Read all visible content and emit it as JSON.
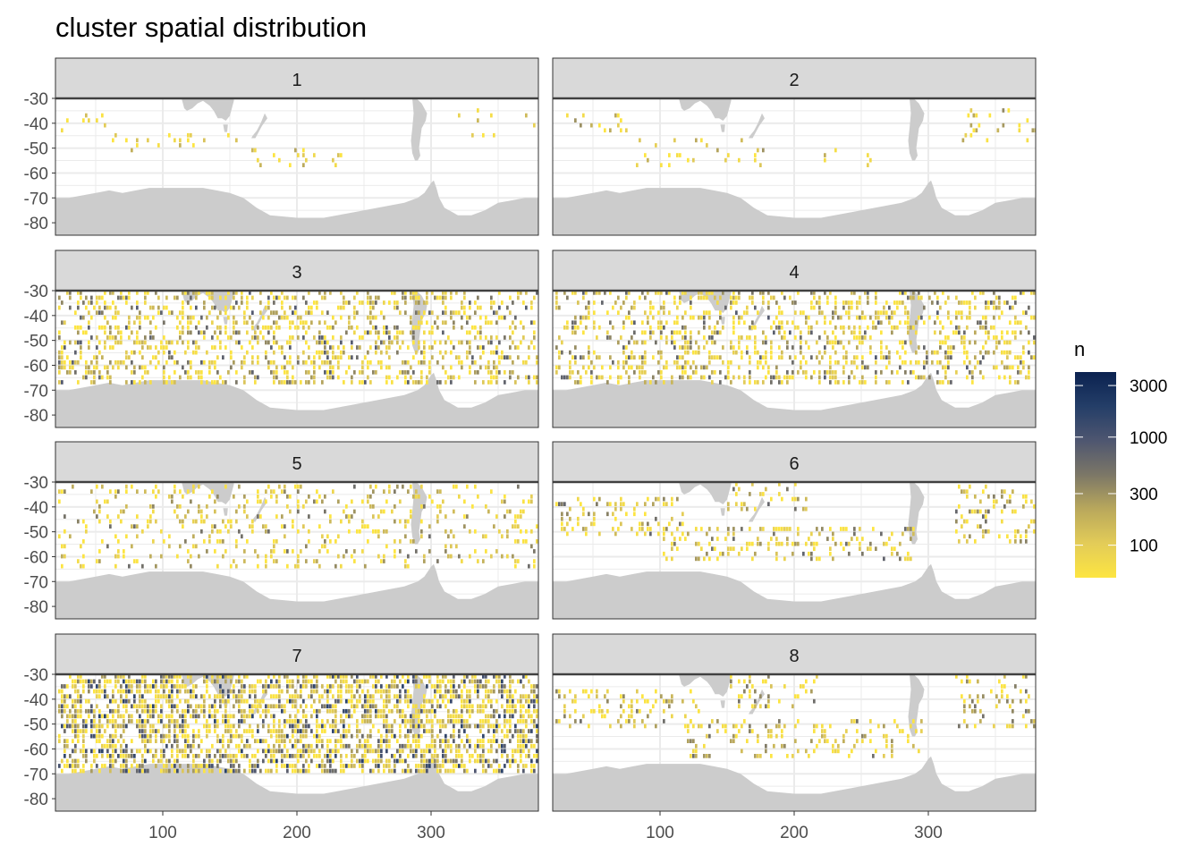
{
  "chart_data": {
    "type": "heatmap",
    "title": "cluster spatial distribution",
    "xlabel": "",
    "ylabel": "",
    "facets": [
      "1",
      "2",
      "3",
      "4",
      "5",
      "6",
      "7",
      "8"
    ],
    "facet_layout": {
      "cols": 2,
      "rows": 4
    },
    "xlim": [
      20,
      380
    ],
    "ylim": [
      -85,
      -30
    ],
    "x_ticks": [
      100,
      200,
      300
    ],
    "x_tick_labels": [
      "100",
      "200",
      "300"
    ],
    "y_ticks": [
      -30,
      -40,
      -50,
      -60,
      -70,
      -80
    ],
    "y_tick_labels": [
      "-30",
      "-40",
      "-50",
      "-60",
      "-70",
      "-80"
    ],
    "legend": {
      "title": "n",
      "scale": "log",
      "range": [
        50,
        4000
      ],
      "ticks": [
        100,
        300,
        1000,
        3000
      ],
      "tick_labels": [
        "100",
        "300",
        "1000",
        "3000"
      ],
      "position": "right",
      "colors": [
        "#FDE541",
        "#E3CC58",
        "#B9A85C",
        "#7C7767",
        "#4E5670",
        "#243E68",
        "#0B2250"
      ]
    },
    "land_color": "#cccccc",
    "grid": true,
    "clusters": [
      {
        "facet": "1",
        "density": 0.09,
        "max_n": 250,
        "bands": [
          {
            "lon": [
              22,
              60
            ],
            "lat": [
              -44,
              -36
            ]
          },
          {
            "lon": [
              60,
              160
            ],
            "lat": [
              -52,
              -44
            ]
          },
          {
            "lon": [
              150,
              240
            ],
            "lat": [
              -58,
              -50
            ]
          },
          {
            "lon": [
              320,
              350
            ],
            "lat": [
              -48,
              -35
            ]
          },
          {
            "lon": [
              370,
              380
            ],
            "lat": [
              -42,
              -36
            ]
          }
        ]
      },
      {
        "facet": "2",
        "density": 0.12,
        "max_n": 350,
        "bands": [
          {
            "lon": [
              22,
              80
            ],
            "lat": [
              -44,
              -36
            ]
          },
          {
            "lon": [
              80,
              180
            ],
            "lat": [
              -58,
              -46
            ]
          },
          {
            "lon": [
              220,
              260
            ],
            "lat": [
              -58,
              -50
            ]
          },
          {
            "lon": [
              325,
              380
            ],
            "lat": [
              -48,
              -35
            ]
          }
        ]
      },
      {
        "facet": "3",
        "density": 0.32,
        "max_n": 900,
        "bands": [
          {
            "lon": [
              22,
              380
            ],
            "lat": [
              -68,
              -31
            ]
          }
        ]
      },
      {
        "facet": "4",
        "density": 0.3,
        "max_n": 900,
        "bands": [
          {
            "lon": [
              22,
              380
            ],
            "lat": [
              -68,
              -31
            ]
          }
        ]
      },
      {
        "facet": "5",
        "density": 0.17,
        "max_n": 600,
        "bands": [
          {
            "lon": [
              22,
              380
            ],
            "lat": [
              -65,
              -31
            ]
          }
        ]
      },
      {
        "facet": "6",
        "density": 0.22,
        "max_n": 700,
        "bands": [
          {
            "lon": [
              22,
              120
            ],
            "lat": [
              -52,
              -36
            ]
          },
          {
            "lon": [
              100,
              290
            ],
            "lat": [
              -62,
              -48
            ]
          },
          {
            "lon": [
              320,
              380
            ],
            "lat": [
              -55,
              -31
            ]
          },
          {
            "lon": [
              150,
              210
            ],
            "lat": [
              -42,
              -31
            ]
          }
        ]
      },
      {
        "facet": "7",
        "density": 0.55,
        "max_n": 1800,
        "bands": [
          {
            "lon": [
              22,
              380
            ],
            "lat": [
              -70,
              -31
            ]
          }
        ]
      },
      {
        "facet": "8",
        "density": 0.2,
        "max_n": 600,
        "bands": [
          {
            "lon": [
              22,
              130
            ],
            "lat": [
              -52,
              -36
            ]
          },
          {
            "lon": [
              120,
              300
            ],
            "lat": [
              -64,
              -48
            ]
          },
          {
            "lon": [
              320,
              380
            ],
            "lat": [
              -52,
              -31
            ]
          },
          {
            "lon": [
              150,
              220
            ],
            "lat": [
              -44,
              -31
            ]
          }
        ]
      }
    ]
  }
}
